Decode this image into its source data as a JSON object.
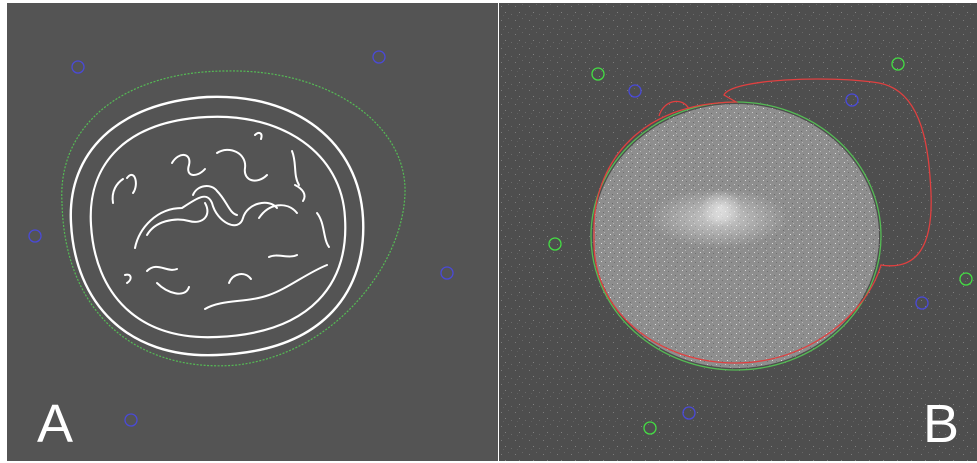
{
  "figure": {
    "panel_a": {
      "label": "A"
    },
    "panel_b": {
      "label": "B"
    }
  },
  "colors": {
    "panel_a_background": "#545454",
    "panel_b_background": "#4e4e4e",
    "edge_lines": "#ffffff",
    "green_contour": "#55bb55",
    "red_contour": "#e04040",
    "blue_markers": "#4a4ad8",
    "green_markers": "#44dd44"
  }
}
